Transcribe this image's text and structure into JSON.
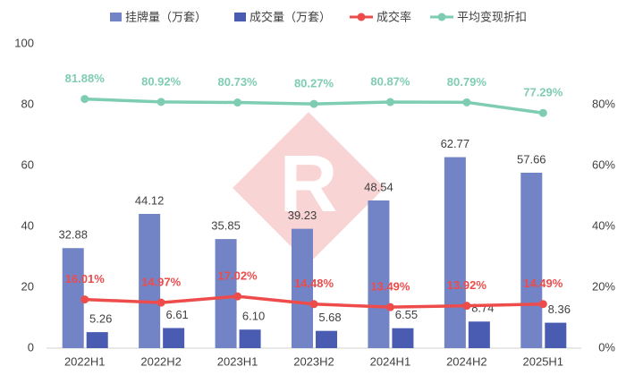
{
  "chart_data": {
    "type": "bar",
    "categories": [
      "2022H1",
      "2022H2",
      "2023H1",
      "2023H2",
      "2024H1",
      "2024H2",
      "2025H1"
    ],
    "series": [
      {
        "name": "挂牌量（万套）",
        "type": "bar",
        "color": "#7384c6",
        "values": [
          32.88,
          44.12,
          35.85,
          39.23,
          48.54,
          62.77,
          57.66
        ],
        "value_labels": [
          "32.88",
          "44.12",
          "35.85",
          "39.23",
          "48.54",
          "62.77",
          "57.66"
        ]
      },
      {
        "name": "成交量（万套）",
        "type": "bar",
        "color": "#4a5cb2",
        "values": [
          5.26,
          6.61,
          6.1,
          5.68,
          6.55,
          8.74,
          8.36
        ],
        "value_labels": [
          "5.26",
          "6.61",
          "6.10",
          "5.68",
          "6.55",
          "8.74",
          "8.36"
        ]
      },
      {
        "name": "成交率",
        "type": "line",
        "axis": "y2",
        "color": "#ee4b4b",
        "values": [
          16.01,
          14.97,
          17.02,
          14.48,
          13.49,
          13.92,
          14.49
        ],
        "value_labels": [
          "16.01%",
          "14.97%",
          "17.02%",
          "14.48%",
          "13.49%",
          "13.92%",
          "14.49%"
        ]
      },
      {
        "name": "平均变现折扣",
        "type": "line",
        "axis": "y2",
        "color": "#7ecdb2",
        "values": [
          81.88,
          80.92,
          80.73,
          80.27,
          80.87,
          80.79,
          77.29
        ],
        "value_labels": [
          "81.88%",
          "80.92%",
          "80.73%",
          "80.27%",
          "80.87%",
          "80.79%",
          "77.29%"
        ]
      }
    ],
    "ylim": [
      0,
      100
    ],
    "yticks": [
      0,
      20,
      40,
      60,
      80,
      100
    ],
    "y2lim": [
      0,
      100
    ],
    "y2ticks": [
      {
        "value": 0,
        "label": "0%"
      },
      {
        "value": 20,
        "label": "20%"
      },
      {
        "value": 40,
        "label": "40%"
      },
      {
        "value": 60,
        "label": "60%"
      },
      {
        "value": 80,
        "label": "80%"
      }
    ]
  }
}
